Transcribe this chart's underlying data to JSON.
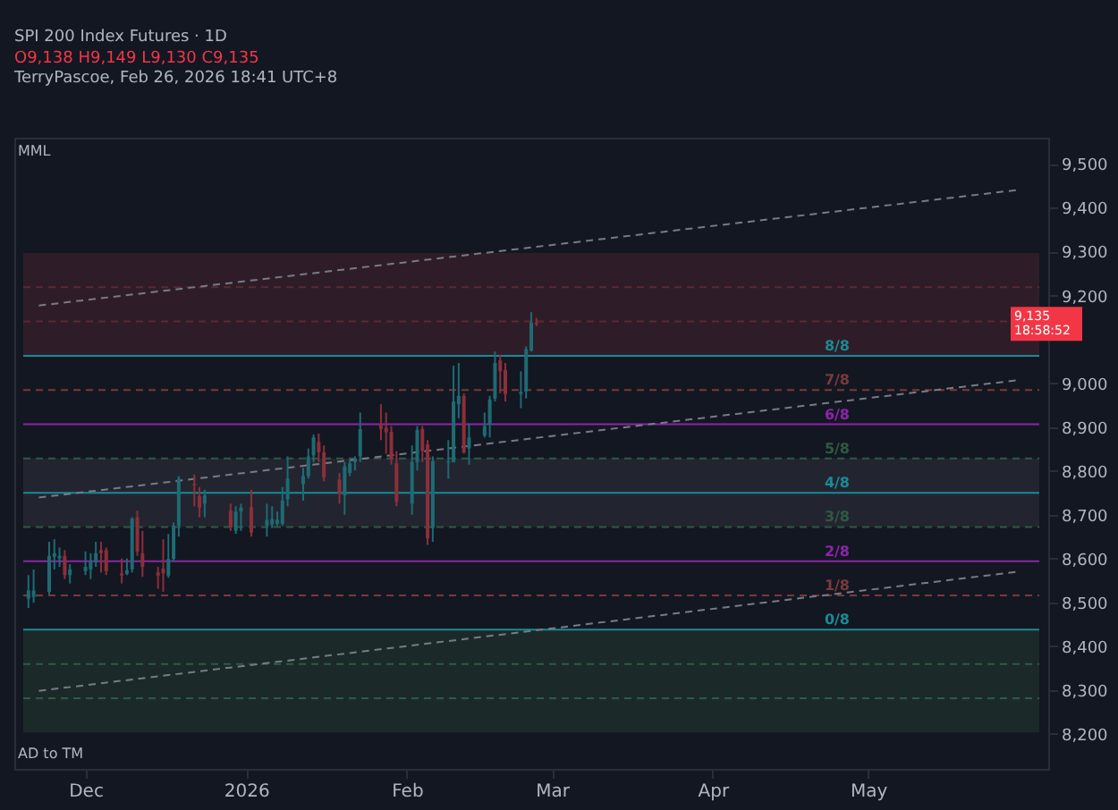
{
  "chart_data": {
    "type": "candlestick",
    "title": "SPI 200 Index Futures · 1D",
    "subtitle": "O9,138  H9,149  L9,130  C9,135",
    "annotations": [
      "TerryPascoe, Feb 26, 2026 18:41 UTC+8",
      "MML",
      "AD to TM",
      {
        "text": "9,135 18:58:52",
        "y": 9135
      },
      {
        "text": "8/8",
        "x": "2026-04-25",
        "y": 9062.5
      },
      {
        "text": "7/8",
        "x": "2026-04-25",
        "y": 8984.375
      },
      {
        "text": "6/8",
        "x": "2026-04-25",
        "y": 8906.25
      },
      {
        "text": "5/8",
        "x": "2026-04-25",
        "y": 8828.125
      },
      {
        "text": "4/8",
        "x": "2026-04-25",
        "y": 8750
      },
      {
        "text": "3/8",
        "x": "2026-04-25",
        "y": 8671.875
      },
      {
        "text": "2/8",
        "x": "2026-04-25",
        "y": 8593.75
      },
      {
        "text": "1/8",
        "x": "2026-04-25",
        "y": 8515.625
      },
      {
        "text": "0/8",
        "x": "2026-04-25",
        "y": 8437.5
      }
    ],
    "x": [
      "2025-11-20",
      "2025-11-21",
      "2025-11-24",
      "2025-11-25",
      "2025-11-26",
      "2025-11-27",
      "2025-11-28",
      "2025-12-01",
      "2025-12-02",
      "2025-12-03",
      "2025-12-04",
      "2025-12-05",
      "2025-12-08",
      "2025-12-09",
      "2025-12-10",
      "2025-12-11",
      "2025-12-12",
      "2025-12-15",
      "2025-12-16",
      "2025-12-17",
      "2025-12-18",
      "2025-12-19",
      "2025-12-22",
      "2025-12-23",
      "2025-12-24",
      "2025-12-29",
      "2025-12-30",
      "2025-12-31",
      "2026-01-02",
      "2026-01-05",
      "2026-01-06",
      "2026-01-07",
      "2026-01-08",
      "2026-01-09",
      "2026-01-12",
      "2026-01-13",
      "2026-01-14",
      "2026-01-15",
      "2026-01-16",
      "2026-01-19",
      "2026-01-20",
      "2026-01-21",
      "2026-01-22",
      "2026-01-23",
      "2026-01-27",
      "2026-01-28",
      "2026-01-29",
      "2026-01-30",
      "2026-02-02",
      "2026-02-03",
      "2026-02-04",
      "2026-02-05",
      "2026-02-06",
      "2026-02-09",
      "2026-02-10",
      "2026-02-11",
      "2026-02-12",
      "2026-02-13",
      "2026-02-16",
      "2026-02-17",
      "2026-02-18",
      "2026-02-19",
      "2026-02-20",
      "2026-02-23",
      "2026-02-24",
      "2026-02-25",
      "2026-02-26"
    ],
    "ohlc": [
      [
        8508,
        8562,
        8487,
        8527
      ],
      [
        8512,
        8575,
        8499,
        8527
      ],
      [
        8524,
        8638,
        8518,
        8606
      ],
      [
        8604,
        8644,
        8575,
        8612
      ],
      [
        8600,
        8625,
        8581,
        8606
      ],
      [
        8606,
        8619,
        8553,
        8562
      ],
      [
        8562,
        8587,
        8543,
        8575
      ],
      [
        8571,
        8616,
        8562,
        8581
      ],
      [
        8575,
        8612,
        8553,
        8593
      ],
      [
        8591,
        8638,
        8581,
        8612
      ],
      [
        8619,
        8638,
        8568,
        8612
      ],
      [
        8619,
        8625,
        8562,
        8571
      ],
      [
        8566,
        8600,
        8543,
        8561
      ],
      [
        8565,
        8600,
        8562,
        8573
      ],
      [
        8575,
        8694,
        8568,
        8691
      ],
      [
        8694,
        8709,
        8606,
        8616
      ],
      [
        8612,
        8663,
        8558,
        8581
      ],
      [
        8568,
        8581,
        8531,
        8561
      ],
      [
        8577,
        8644,
        8524,
        8566
      ],
      [
        8561,
        8656,
        8556,
        8599
      ],
      [
        8599,
        8682,
        8593,
        8675
      ],
      [
        8675,
        8788,
        8650,
        8782
      ],
      [
        8770,
        8792,
        8719,
        8767
      ],
      [
        8742,
        8763,
        8694,
        8716
      ],
      [
        8725,
        8757,
        8694,
        8744
      ],
      [
        8709,
        8725,
        8663,
        8671
      ],
      [
        8663,
        8719,
        8656,
        8707
      ],
      [
        8707,
        8725,
        8663,
        8716
      ],
      [
        8717,
        8757,
        8650,
        8659
      ],
      [
        8675,
        8725,
        8650,
        8688
      ],
      [
        8678,
        8719,
        8669,
        8690
      ],
      [
        8679,
        8707,
        8675,
        8688
      ],
      [
        8679,
        8763,
        8675,
        8732
      ],
      [
        8735,
        8833,
        8719,
        8782
      ],
      [
        8770,
        8807,
        8732,
        8788
      ],
      [
        8788,
        8851,
        8782,
        8833
      ],
      [
        8835,
        8883,
        8820,
        8876
      ],
      [
        8866,
        8885,
        8820,
        8842
      ],
      [
        8842,
        8858,
        8776,
        8785
      ],
      [
        8780,
        8795,
        8725,
        8747
      ],
      [
        8744,
        8820,
        8700,
        8810
      ],
      [
        8795,
        8826,
        8788,
        8817
      ],
      [
        8820,
        8833,
        8801,
        8826
      ],
      [
        8833,
        8933,
        8820,
        8895
      ],
      [
        8905,
        8952,
        8870,
        8895
      ],
      [
        8898,
        8933,
        8839,
        8888
      ],
      [
        8889,
        8902,
        8814,
        8826
      ],
      [
        8817,
        8845,
        8719,
        8729
      ],
      [
        8725,
        8858,
        8700,
        8820
      ],
      [
        8820,
        8902,
        8801,
        8893
      ],
      [
        8895,
        8902,
        8820,
        8845
      ],
      [
        8860,
        8870,
        8631,
        8646
      ],
      [
        8669,
        8833,
        8638,
        8822
      ],
      [
        8819,
        8870,
        8782,
        8822
      ],
      [
        8820,
        9040,
        8819,
        8958
      ],
      [
        8952,
        9046,
        8920,
        8971
      ],
      [
        8971,
        8977,
        8839,
        8842
      ],
      [
        8851,
        8908,
        8814,
        8876
      ],
      [
        8880,
        8933,
        8876,
        8902
      ],
      [
        8905,
        8971,
        8876,
        8963
      ],
      [
        8965,
        9072,
        8958,
        9046
      ],
      [
        9052,
        9065,
        8977,
        9027
      ],
      [
        9030,
        9046,
        8958,
        8975
      ],
      [
        8975,
        9027,
        8943,
        8980
      ],
      [
        8981,
        9084,
        8965,
        9078
      ],
      [
        9074,
        9162,
        9072,
        9138
      ],
      [
        9138,
        9149,
        9130,
        9135
      ]
    ],
    "colors": [
      "#1e6b73",
      "#1e6b73",
      "#1e6b73",
      "#1e6b73",
      "#1e6b73",
      "#8c2f3b",
      "#1e6b73",
      "#1e6b73",
      "#1e6b73",
      "#1e6b73",
      "#8c2f3b",
      "#8c2f3b",
      "#8c2f3b",
      "#1e6b73",
      "#1e6b73",
      "#8c2f3b",
      "#8c2f3b",
      "#8c2f3b",
      "#8c2f3b",
      "#1e6b73",
      "#1e6b73",
      "#1e6b73",
      "#8c2f3b",
      "#8c2f3b",
      "#1e6b73",
      "#8c2f3b",
      "#1e6b73",
      "#1e6b73",
      "#8c2f3b",
      "#1e6b73",
      "#1e6b73",
      "#1e6b73",
      "#1e6b73",
      "#1e6b73",
      "#1e6b73",
      "#1e6b73",
      "#1e6b73",
      "#8c2f3b",
      "#8c2f3b",
      "#8c2f3b",
      "#1e6b73",
      "#1e6b73",
      "#1e6b73",
      "#1e6b73",
      "#8c2f3b",
      "#8c2f3b",
      "#8c2f3b",
      "#8c2f3b",
      "#1e6b73",
      "#1e6b73",
      "#8c2f3b",
      "#8c2f3b",
      "#1e6b73",
      "#1e6b73",
      "#1e6b73",
      "#1e6b73",
      "#8c2f3b",
      "#1e6b73",
      "#1e6b73",
      "#1e6b73",
      "#1e6b73",
      "#8c2f3b",
      "#8c2f3b",
      "#1e6b73",
      "#1e6b73",
      "#1e6b73",
      "#8c2f3b"
    ],
    "series": [
      {
        "type": "line",
        "color": "#787b86",
        "line_style": "dashed",
        "x": [
          "2025-11-22",
          "2026-05-30"
        ],
        "values": [
          9177,
          9441
        ]
      },
      {
        "type": "line",
        "color": "#787b86",
        "line_style": "dashed",
        "x": [
          "2025-11-22",
          "2026-05-30"
        ],
        "values": [
          8739,
          9007
        ]
      },
      {
        "type": "line",
        "color": "#787b86",
        "line_style": "dashed",
        "x": [
          "2025-11-22",
          "2026-05-30"
        ],
        "values": [
          8298,
          8570
        ]
      }
    ],
    "bands": [
      {
        "axis": "y",
        "from": 9062.5,
        "to": 9296.875,
        "label": null,
        "color": "#2e1d28"
      },
      {
        "axis": "y",
        "from": 8671.875,
        "to": 8828.125,
        "label": null,
        "color": "#22252f"
      },
      {
        "axis": "y",
        "from": 8203.125,
        "to": 8437.5,
        "label": null,
        "color": "#1b2a28"
      }
    ],
    "ref_lines": [
      {
        "axis": "y",
        "value": 9218.75,
        "label": null,
        "color": "#5a2a33",
        "line_style": "dashed"
      },
      {
        "axis": "y",
        "value": 9140.625,
        "label": null,
        "color": "#5a2a33",
        "line_style": "dashed"
      },
      {
        "axis": "y",
        "value": 9062.5,
        "label": null,
        "color": "#1a8a96",
        "line_style": "solid"
      },
      {
        "axis": "y",
        "value": 8984.375,
        "label": null,
        "color": "#7a3a3a",
        "line_style": "dashed"
      },
      {
        "axis": "y",
        "value": 8906.25,
        "label": null,
        "color": "#8e24aa",
        "line_style": "solid"
      },
      {
        "axis": "y",
        "value": 8828.125,
        "label": null,
        "color": "#2f5a44",
        "line_style": "dashed"
      },
      {
        "axis": "y",
        "value": 8750,
        "label": null,
        "color": "#1a8a96",
        "line_style": "solid"
      },
      {
        "axis": "y",
        "value": 8671.875,
        "label": null,
        "color": "#2f5a44",
        "line_style": "dashed"
      },
      {
        "axis": "y",
        "value": 8593.75,
        "label": null,
        "color": "#8e24aa",
        "line_style": "solid"
      },
      {
        "axis": "y",
        "value": 8515.625,
        "label": null,
        "color": "#7a3a3a",
        "line_style": "dashed"
      },
      {
        "axis": "y",
        "value": 8437.5,
        "label": null,
        "color": "#1a8a96",
        "line_style": "solid"
      },
      {
        "axis": "y",
        "value": 8359.375,
        "label": null,
        "color": "#2f5a44",
        "line_style": "dashed"
      },
      {
        "axis": "y",
        "value": 8281.25,
        "label": null,
        "color": "#2f5a44",
        "line_style": "dashed"
      }
    ],
    "xlim": [
      "2025-11-19",
      "2026-06-03"
    ],
    "xticks": [
      {
        "value": "2025-12-01",
        "label": "Dec"
      },
      {
        "value": "2026-01-01",
        "label": "2026"
      },
      {
        "value": "2026-02-01",
        "label": "Feb"
      },
      {
        "value": "2026-03-01",
        "label": "Mar"
      },
      {
        "value": "2026-04-01",
        "label": "Apr"
      },
      {
        "value": "2026-05-01",
        "label": "May"
      }
    ],
    "ylim": [
      8120,
      9560
    ],
    "yticks": [
      {
        "value": 8200,
        "label": "8,200"
      },
      {
        "value": 8300,
        "label": "8,300"
      },
      {
        "value": 8400,
        "label": "8,400"
      },
      {
        "value": 8500,
        "label": "8,500"
      },
      {
        "value": 8600,
        "label": "8,600"
      },
      {
        "value": 8700,
        "label": "8,700"
      },
      {
        "value": 8800,
        "label": "8,800"
      },
      {
        "value": 8900,
        "label": "8,900"
      },
      {
        "value": 9000,
        "label": "9,000"
      },
      {
        "value": 9200,
        "label": "9,200"
      },
      {
        "value": 9300,
        "label": "9,300"
      },
      {
        "value": 9400,
        "label": "9,400"
      },
      {
        "value": 9500,
        "label": "9,500"
      }
    ],
    "grid": false,
    "legend": false
  }
}
